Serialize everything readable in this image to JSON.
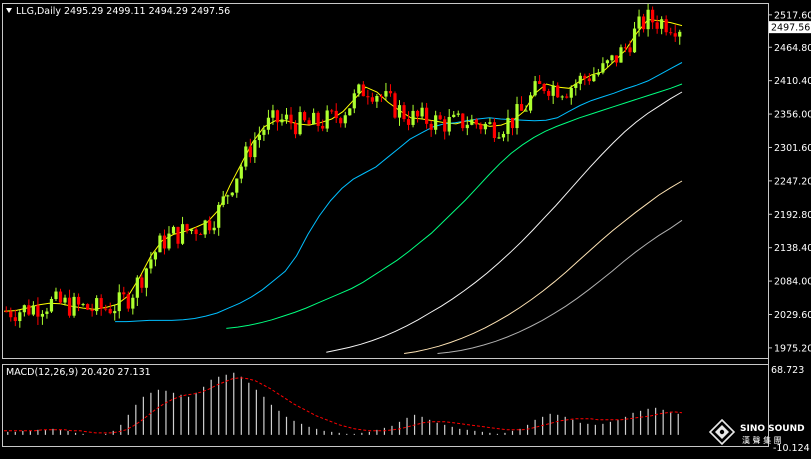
{
  "header": {
    "symbol": "LLG,Daily",
    "ohlc": "2495.29 2499.11 2494.29 2497.56"
  },
  "macd": {
    "label": "MACD(12,26,9) 20.420 27.131",
    "top_value": "68.723",
    "bottom_value": "-10.124"
  },
  "watermark": {
    "text": "SINO SOUND",
    "subtext": "漢 聲 集 團"
  },
  "colors": {
    "background": "#000000",
    "frame": "#c8c8c8",
    "bull": "#adff2f",
    "bear": "#ff0000",
    "text": "#ffffff",
    "current_price_bg": "#ffffff",
    "macd_hist": "#d0d0d0",
    "macd_signal": "#ff0000"
  },
  "chart_data": {
    "type": "candlestick",
    "ylim": [
      1962,
      2532
    ],
    "y_ticks": [
      "2517.60",
      "2464.80",
      "2410.40",
      "2356.00",
      "2301.60",
      "2247.20",
      "2192.80",
      "2138.40",
      "2084.00",
      "2029.60",
      "1975.20"
    ],
    "current_price": "2497.56",
    "moving_averages": [
      {
        "color": "#ffff00",
        "values": [
          2035,
          2036,
          2040,
          2045,
          2048,
          2047,
          2043,
          2040,
          2038,
          2041,
          2046,
          2060,
          2090,
          2125,
          2150,
          2160,
          2165,
          2172,
          2180,
          2200,
          2240,
          2275,
          2310,
          2335,
          2345,
          2345,
          2340,
          2338,
          2342,
          2348,
          2360,
          2380,
          2400,
          2392,
          2375,
          2362,
          2350,
          2348,
          2345,
          2342,
          2340,
          2345,
          2340,
          2336,
          2338,
          2345,
          2360,
          2390,
          2405,
          2400,
          2398,
          2410,
          2420,
          2425,
          2442,
          2460,
          2488,
          2510,
          2508,
          2505,
          2500
        ]
      },
      {
        "color": "#00bfff",
        "values": [
          2018,
          2018,
          2019,
          2020,
          2020,
          2020,
          2021,
          2023,
          2027,
          2032,
          2040,
          2048,
          2058,
          2070,
          2085,
          2100,
          2125,
          2160,
          2190,
          2215,
          2235,
          2250,
          2260,
          2270,
          2285,
          2300,
          2315,
          2325,
          2335,
          2340,
          2342,
          2345,
          2348,
          2350,
          2348,
          2347,
          2346,
          2345,
          2346,
          2350,
          2360,
          2370,
          2378,
          2384,
          2390,
          2397,
          2403,
          2410,
          2420,
          2430,
          2440
        ]
      },
      {
        "color": "#00ff7f",
        "values": [
          2007,
          2009,
          2012,
          2016,
          2021,
          2027,
          2033,
          2040,
          2048,
          2056,
          2064,
          2072,
          2082,
          2094,
          2106,
          2118,
          2132,
          2147,
          2162,
          2180,
          2198,
          2216,
          2236,
          2256,
          2275,
          2292,
          2306,
          2318,
          2328,
          2336,
          2343,
          2350,
          2356,
          2362,
          2368,
          2374,
          2380,
          2386,
          2392,
          2398,
          2405
        ]
      },
      {
        "color": "#f5f5f5",
        "values": [
          1968,
          1972,
          1976,
          1981,
          1987,
          1994,
          2002,
          2011,
          2021,
          2032,
          2043,
          2055,
          2068,
          2082,
          2097,
          2113,
          2130,
          2148,
          2167,
          2187,
          2207,
          2228,
          2249,
          2270,
          2290,
          2309,
          2327,
          2343,
          2357,
          2369,
          2381,
          2392
        ]
      },
      {
        "color": "#ffe4b5",
        "values": [
          1966,
          1969,
          1973,
          1978,
          1984,
          1991,
          1999,
          2008,
          2018,
          2029,
          2041,
          2054,
          2068,
          2083,
          2099,
          2116,
          2133,
          2150,
          2166,
          2181,
          2196,
          2210,
          2224,
          2236,
          2247
        ]
      },
      {
        "color": "#b0b0b0",
        "values": [
          1966,
          1968,
          1971,
          1975,
          1980,
          1986,
          1993,
          2001,
          2010,
          2020,
          2031,
          2043,
          2056,
          2070,
          2085,
          2100,
          2116,
          2131,
          2145,
          2158,
          2170,
          2183
        ]
      }
    ],
    "macd_ylim": [
      -10.124,
      68.723
    ],
    "macd_levels": [
      3,
      3,
      4,
      4,
      5,
      5,
      6,
      5,
      4,
      2,
      1,
      0,
      0,
      1,
      4,
      10,
      20,
      30,
      38,
      42,
      45,
      44,
      42,
      40,
      38,
      42,
      48,
      55,
      58,
      60,
      62,
      58,
      52,
      45,
      38,
      30,
      24,
      18,
      14,
      11,
      8,
      6,
      4,
      3,
      2,
      1,
      1,
      2,
      3,
      5,
      7,
      9,
      13,
      17,
      20,
      18,
      15,
      12,
      10,
      8,
      6,
      5,
      4,
      3,
      2,
      1,
      2,
      4,
      6,
      10,
      15,
      18,
      21,
      20,
      18,
      15,
      12,
      11,
      10,
      11,
      13,
      15,
      18,
      22,
      24,
      26,
      27,
      25,
      23,
      21
    ],
    "macd_signal_levels": [
      4,
      4,
      4,
      4,
      4,
      5,
      5,
      5,
      5,
      4,
      4,
      3,
      2,
      2,
      2,
      3,
      5,
      9,
      14,
      20,
      26,
      31,
      35,
      38,
      40,
      41,
      43,
      46,
      50,
      53,
      56,
      57,
      56,
      54,
      50,
      46,
      41,
      36,
      31,
      27,
      23,
      19,
      16,
      13,
      10,
      8,
      6,
      5,
      4,
      4,
      4,
      5,
      6,
      8,
      10,
      12,
      13,
      13,
      13,
      12,
      11,
      10,
      9,
      8,
      7,
      6,
      5,
      5,
      5,
      6,
      8,
      10,
      12,
      14,
      15,
      16,
      16,
      16,
      15,
      15,
      15,
      15,
      16,
      17,
      18,
      19,
      21,
      22,
      23,
      22
    ]
  }
}
